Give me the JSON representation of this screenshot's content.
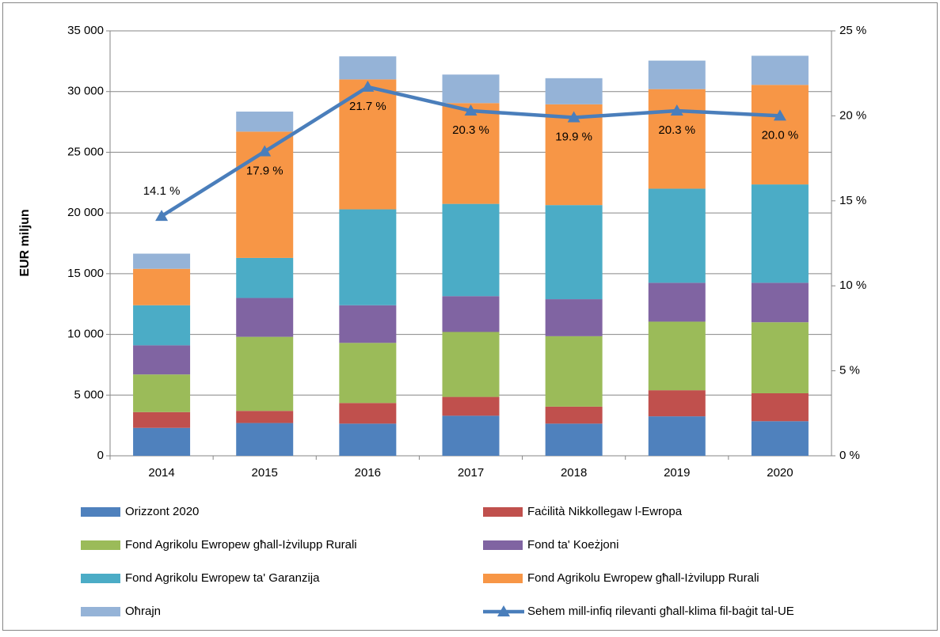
{
  "chart_data": {
    "type": "bar",
    "stacked": true,
    "y_label": "EUR miljun",
    "categories": [
      "2014",
      "2015",
      "2016",
      "2017",
      "2018",
      "2019",
      "2020"
    ],
    "ylim": [
      0,
      35000
    ],
    "yticks": [
      {
        "value": 0,
        "label": "0"
      },
      {
        "value": 5000,
        "label": "5 000"
      },
      {
        "value": 10000,
        "label": "10 000"
      },
      {
        "value": 15000,
        "label": "15 000"
      },
      {
        "value": 20000,
        "label": "20 000"
      },
      {
        "value": 25000,
        "label": "25 000"
      },
      {
        "value": 30000,
        "label": "30 000"
      },
      {
        "value": 35000,
        "label": "35 000"
      }
    ],
    "y2lim": [
      0,
      25
    ],
    "y2ticks": [
      {
        "value": 0,
        "label": "0 %"
      },
      {
        "value": 5,
        "label": "5 %"
      },
      {
        "value": 10,
        "label": "10 %"
      },
      {
        "value": 15,
        "label": "15 %"
      },
      {
        "value": 20,
        "label": "20 %"
      },
      {
        "value": 25,
        "label": "25 %"
      }
    ],
    "grid": true,
    "legend": "bottom",
    "series": [
      {
        "name": "Orizzont 2020",
        "color": "#4f81bd",
        "values": [
          2300,
          2700,
          2650,
          3300,
          2650,
          3250,
          2850
        ]
      },
      {
        "name": "Faċilità Nikkollegaw l-Ewropa",
        "color": "#c0504d",
        "values": [
          1300,
          1000,
          1700,
          1550,
          1400,
          2150,
          2300
        ]
      },
      {
        "name": "Fond Agrikolu Ewropew għall-Iżvilupp Rurali",
        "color": "#9bbb59",
        "values": [
          3100,
          6100,
          4950,
          5350,
          5800,
          5650,
          5850
        ]
      },
      {
        "name": "Fond ta' Koeżjoni",
        "color": "#8064a2",
        "values": [
          2400,
          3200,
          3100,
          2950,
          3050,
          3200,
          3250
        ]
      },
      {
        "name": "Fond Agrikolu Ewropew ta' Garanzija",
        "color": "#4bacc6",
        "values": [
          3300,
          3300,
          7900,
          7600,
          7750,
          7750,
          8100
        ]
      },
      {
        "name": "Fond Agrikolu Ewropew għall-Iżvilupp Rurali",
        "color": "#f79646",
        "values": [
          3000,
          10400,
          10700,
          8300,
          8300,
          8200,
          8200
        ]
      },
      {
        "name": "Oħrajn",
        "color": "#95b3d7",
        "values": [
          1250,
          1650,
          1900,
          2350,
          2150,
          2350,
          2400
        ]
      },
      {
        "name": "Sehem mill-infiq rilevanti għall-klima fil-baġit tal-UE",
        "color": "#4a7ebb",
        "type": "line",
        "axis": "y2",
        "values": [
          14.1,
          17.9,
          21.7,
          20.3,
          19.9,
          20.3,
          20.0
        ],
        "value_labels": [
          "14.1 %",
          "17.9 %",
          "21.7 %",
          "20.3 %",
          "19.9 %",
          "20.3 %",
          "20.0 %"
        ]
      }
    ]
  }
}
